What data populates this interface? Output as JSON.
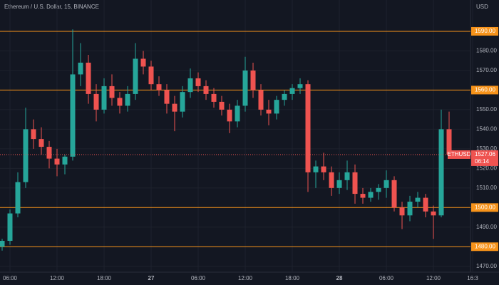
{
  "chart_data": {
    "type": "candlestick",
    "title": "Ethereum / U.S. Dollar, 15, BINANCE",
    "y_unit": "USD",
    "categories": [
      null,
      "06:00",
      null,
      null,
      null,
      null,
      null,
      "12:00",
      null,
      null,
      null,
      null,
      null,
      "18:00",
      null,
      null,
      null,
      null,
      null,
      "27",
      null,
      null,
      null,
      null,
      null,
      "06:00",
      null,
      null,
      null,
      null,
      null,
      "12:00",
      null,
      null,
      null,
      null,
      null,
      "18:00",
      null,
      null,
      null,
      null,
      null,
      "28",
      null,
      null,
      null,
      null,
      null,
      "06:00",
      null,
      null,
      null,
      null,
      null,
      "12:00",
      null,
      null,
      null,
      null,
      "16:3"
    ],
    "open": [
      1480,
      1483,
      1497,
      1513,
      1540,
      1535,
      1531,
      1525,
      1522,
      1526,
      1568,
      1574,
      1558,
      1550,
      1562,
      1556,
      1552,
      1558,
      1576,
      1572,
      1563,
      1560,
      1553,
      1549,
      1559,
      1566,
      1562,
      1558,
      1554,
      1550,
      1544,
      1552,
      1570,
      1560,
      1550,
      1548,
      1555,
      1558,
      1561,
      1563,
      1518,
      1521,
      1518,
      1510,
      1514,
      1518,
      1507,
      1505,
      1508,
      1510,
      1514,
      1500,
      1496,
      1503,
      1505,
      1498,
      1496,
      1540,
      null,
      null,
      null
    ],
    "high": [
      1484,
      1499,
      1518,
      1551,
      1545,
      1541,
      1534,
      1530,
      1527,
      1591,
      1584,
      1578,
      1563,
      1566,
      1568,
      1559,
      1562,
      1584,
      1580,
      1575,
      1567,
      1563,
      1557,
      1562,
      1571,
      1569,
      1565,
      1561,
      1557,
      1553,
      1555,
      1577,
      1574,
      1563,
      1555,
      1557,
      1560,
      1563,
      1566,
      1565,
      1524,
      1528,
      1521,
      1518,
      1524,
      1522,
      1510,
      1510,
      1512,
      1519,
      1516,
      1503,
      1506,
      1508,
      1507,
      1501,
      1550,
      1549,
      null,
      null,
      null
    ],
    "low": [
      1478,
      1481,
      1495,
      1510,
      1530,
      1527,
      1520,
      1516,
      1517,
      1524,
      1562,
      1553,
      1544,
      1548,
      1552,
      1548,
      1549,
      1555,
      1568,
      1560,
      1557,
      1548,
      1539,
      1546,
      1556,
      1559,
      1555,
      1551,
      1547,
      1538,
      1541,
      1549,
      1556,
      1547,
      1542,
      1545,
      1552,
      1555,
      1558,
      1508,
      1510,
      1514,
      1506,
      1507,
      1509,
      1502,
      1502,
      1503,
      1504,
      1505,
      1498,
      1489,
      1493,
      1500,
      1495,
      1484,
      1495,
      1525,
      null,
      null,
      null
    ],
    "close": [
      1483,
      1497,
      1513,
      1540,
      1535,
      1531,
      1525,
      1522,
      1526,
      1568,
      1574,
      1558,
      1550,
      1562,
      1556,
      1552,
      1558,
      1576,
      1572,
      1563,
      1560,
      1553,
      1549,
      1559,
      1566,
      1562,
      1558,
      1554,
      1550,
      1544,
      1552,
      1570,
      1560,
      1550,
      1548,
      1555,
      1558,
      1561,
      1563,
      1518,
      1521,
      1518,
      1510,
      1514,
      1518,
      1507,
      1505,
      1508,
      1510,
      1514,
      1500,
      1496,
      1503,
      1505,
      1498,
      1496,
      1540,
      1527.06,
      null,
      null,
      null
    ],
    "up_color": "#26a69a",
    "down_color": "#ef5350",
    "ylim": [
      1467,
      1606
    ],
    "yticks": [
      {
        "value": 1470,
        "label": "1470.00"
      },
      {
        "value": 1490,
        "label": "1490.00"
      },
      {
        "value": 1510,
        "label": "1510.00"
      },
      {
        "value": 1520,
        "label": "1520.00"
      },
      {
        "value": 1530,
        "label": "1530.00"
      },
      {
        "value": 1540,
        "label": "1540.00"
      },
      {
        "value": 1550,
        "label": "1550.00"
      },
      {
        "value": 1570,
        "label": "1570.00"
      },
      {
        "value": 1580,
        "label": "1580.00"
      }
    ],
    "levels": [
      {
        "value": 1590,
        "label": "1590.00"
      },
      {
        "value": 1560,
        "label": "1560.00"
      },
      {
        "value": 1500,
        "label": "1500.00"
      },
      {
        "value": 1480,
        "label": "1480.00"
      }
    ],
    "level_color": "#f7931a",
    "last_price": {
      "symbol": "ETHUSD",
      "value": 1527.06,
      "label": "1527.06",
      "countdown": "06:14"
    },
    "grid": true
  }
}
